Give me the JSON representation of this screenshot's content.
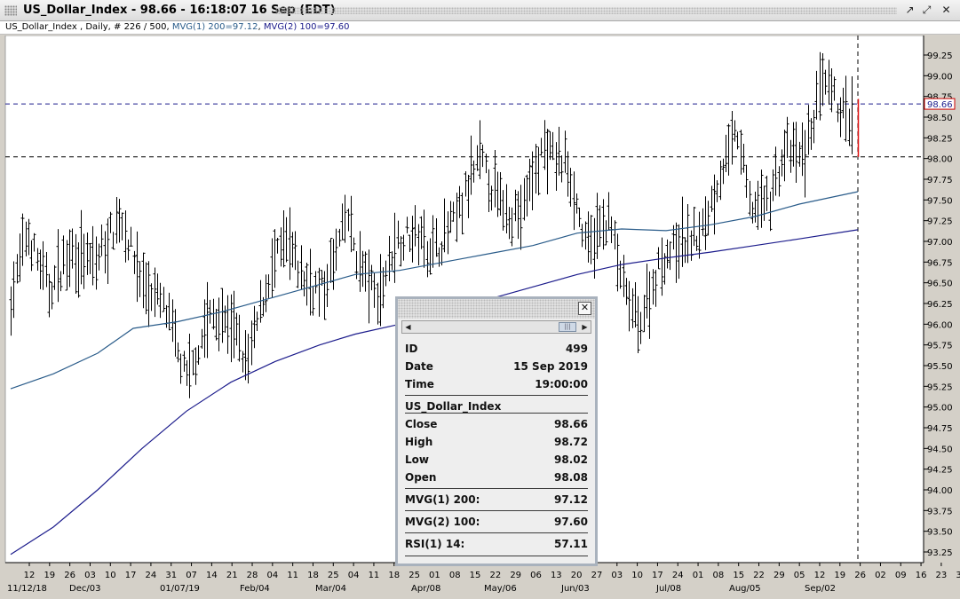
{
  "window": {
    "title": "US_Dollar_Index - 98.66 - 16:18:07  16 Sep (EDT)",
    "buttons": [
      "restore-icon",
      "maximize-icon",
      "close-icon"
    ]
  },
  "infobar": {
    "prefix": "US_Dollar_Index , Daily, # 226 / 500, ",
    "mvg1": "MVG(1) 200=97.12",
    "sep": ", ",
    "mvg2": "MVG(2) 100=97.60"
  },
  "chart_data": {
    "type": "ohlc-bar",
    "y_ticks": [
      "93.25",
      "93.50",
      "93.75",
      "94.00",
      "94.25",
      "94.50",
      "94.75",
      "95.00",
      "95.25",
      "95.50",
      "95.75",
      "96.00",
      "96.25",
      "96.50",
      "96.75",
      "97.00",
      "97.25",
      "97.50",
      "97.75",
      "98.00",
      "98.25",
      "98.50",
      "98.75",
      "99.00",
      "99.25"
    ],
    "ylim": [
      93.1,
      99.6
    ],
    "x_day_ticks": [
      "12",
      "19",
      "26",
      "03",
      "10",
      "17",
      "24",
      "31",
      "07",
      "14",
      "21",
      "28",
      "04",
      "11",
      "18",
      "25",
      "04",
      "11",
      "18",
      "25",
      "01",
      "08",
      "15",
      "22",
      "29",
      "06",
      "13",
      "20",
      "27",
      "03",
      "10",
      "17",
      "24",
      "01",
      "08",
      "15",
      "22",
      "29",
      "05",
      "12",
      "19",
      "26",
      "02",
      "09",
      "16",
      "23",
      "30"
    ],
    "x_month_labels": [
      "11/12/18",
      "Dec/03",
      "01/07/19",
      "Feb/04",
      "Mar/04",
      "Apr/08",
      "May/06",
      "Jun/03",
      "Jul/08",
      "Aug/05",
      "Sep/02"
    ],
    "last_price": "98.66",
    "hlines": [
      98.66,
      98.02
    ],
    "series": [
      {
        "name": "MVG(1) 200",
        "color": "#1c1c8c",
        "points": [
          [
            12,
            93.22
          ],
          [
            60,
            93.55
          ],
          [
            110,
            94.0
          ],
          [
            160,
            94.5
          ],
          [
            210,
            94.95
          ],
          [
            260,
            95.3
          ],
          [
            310,
            95.55
          ],
          [
            360,
            95.75
          ],
          [
            400,
            95.88
          ],
          [
            450,
            96.0
          ],
          [
            500,
            96.1
          ],
          [
            550,
            96.3
          ],
          [
            600,
            96.45
          ],
          [
            650,
            96.6
          ],
          [
            700,
            96.72
          ],
          [
            750,
            96.8
          ],
          [
            800,
            96.87
          ],
          [
            850,
            96.95
          ],
          [
            900,
            97.03
          ],
          [
            966,
            97.14
          ]
        ]
      },
      {
        "name": "MVG(2) 100",
        "color": "#2a5c8a",
        "points": [
          [
            12,
            95.22
          ],
          [
            60,
            95.4
          ],
          [
            110,
            95.65
          ],
          [
            150,
            95.95
          ],
          [
            200,
            96.03
          ],
          [
            250,
            96.15
          ],
          [
            300,
            96.3
          ],
          [
            350,
            96.45
          ],
          [
            400,
            96.6
          ],
          [
            450,
            96.65
          ],
          [
            500,
            96.75
          ],
          [
            550,
            96.85
          ],
          [
            600,
            96.95
          ],
          [
            650,
            97.1
          ],
          [
            700,
            97.15
          ],
          [
            750,
            97.13
          ],
          [
            800,
            97.2
          ],
          [
            850,
            97.3
          ],
          [
            900,
            97.45
          ],
          [
            966,
            97.6
          ]
        ]
      }
    ],
    "bar_color": "#000000"
  },
  "popup": {
    "rows": [
      {
        "label": "ID",
        "value": "499"
      },
      {
        "label": "Date",
        "value": "15 Sep 2019"
      },
      {
        "label": "Time",
        "value": "19:00:00"
      },
      {
        "label": "US_Dollar_Index",
        "value": ""
      },
      {
        "label": "Close",
        "value": "98.66"
      },
      {
        "label": "High",
        "value": "98.72"
      },
      {
        "label": "Low",
        "value": "98.02"
      },
      {
        "label": "Open",
        "value": "98.08"
      },
      {
        "label": "MVG(1) 200:",
        "value": "97.12"
      },
      {
        "label": "MVG(2) 100:",
        "value": "97.60"
      },
      {
        "label": "RSI(1) 14:",
        "value": "57.11"
      }
    ]
  }
}
